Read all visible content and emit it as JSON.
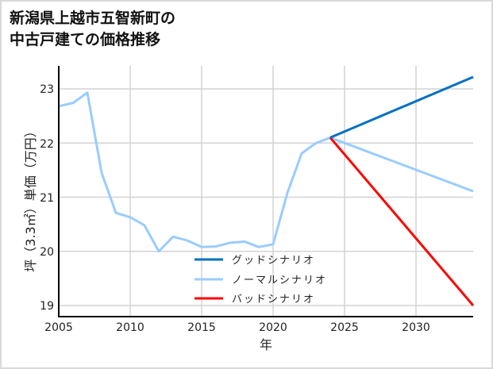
{
  "title": {
    "line1": "新潟県上越市五智新町の",
    "line2": "中古戸建ての価格推移"
  },
  "colors": {
    "good": "#0070C0",
    "normal": "#99CCFF",
    "bad": "#FF0000",
    "grid": "#d3d3d3",
    "axis": "#000000"
  },
  "chart_data": {
    "type": "line",
    "title": "新潟県上越市五智新町の中古戸建ての価格推移",
    "xlabel": "年",
    "ylabel": "坪（3.3㎡）単価（万円）",
    "xlim": [
      2005,
      2034
    ],
    "ylim": [
      18.8,
      23.4
    ],
    "xticks": [
      2005,
      2010,
      2015,
      2020,
      2025,
      2030
    ],
    "yticks": [
      19,
      20,
      21,
      22,
      23
    ],
    "grid": true,
    "legend_position": "lower center",
    "historical": {
      "name": "ノーマルシナリオ",
      "x": [
        2005,
        2006,
        2007,
        2008,
        2009,
        2010,
        2011,
        2012,
        2013,
        2014,
        2015,
        2016,
        2017,
        2018,
        2019,
        2020,
        2021,
        2022,
        2023,
        2024
      ],
      "values": [
        22.68,
        22.74,
        22.93,
        21.45,
        20.71,
        20.63,
        20.48,
        20.0,
        20.27,
        20.2,
        20.08,
        20.09,
        20.16,
        20.18,
        20.08,
        20.13,
        21.08,
        21.81,
        22.0,
        22.1
      ]
    },
    "series": [
      {
        "name": "グッドシナリオ",
        "color": "#0070C0",
        "x": [
          2024,
          2034
        ],
        "values": [
          22.1,
          23.22
        ]
      },
      {
        "name": "ノーマルシナリオ",
        "color": "#99CCFF",
        "x": [
          2024,
          2034
        ],
        "values": [
          22.1,
          21.11
        ]
      },
      {
        "name": "バッドシナリオ",
        "color": "#FF0000",
        "x": [
          2024,
          2034
        ],
        "values": [
          22.1,
          19.0
        ]
      }
    ]
  },
  "legend": [
    {
      "label": "グッドシナリオ",
      "color": "#0070C0"
    },
    {
      "label": "ノーマルシナリオ",
      "color": "#99CCFF"
    },
    {
      "label": "バッドシナリオ",
      "color": "#FF0000"
    }
  ],
  "axis": {
    "xlabel": "年",
    "ylabel": "坪（3.3㎡）単価（万円）",
    "xticks": [
      "2005",
      "2010",
      "2015",
      "2020",
      "2025",
      "2030"
    ],
    "yticks": [
      "23",
      "22",
      "21",
      "20",
      "19"
    ]
  }
}
